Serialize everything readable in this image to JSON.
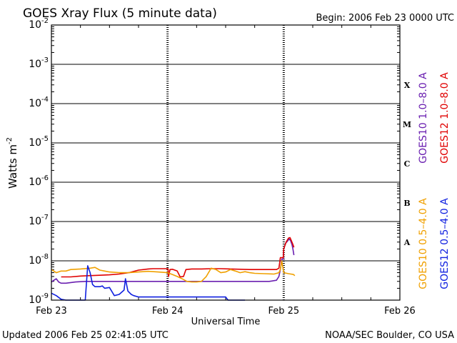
{
  "chart_data": {
    "type": "line",
    "title": "GOES Xray Flux (5 minute data)",
    "begin_label": "Begin:  2006 Feb 23 0000 UTC",
    "xlabel": "Universal Time",
    "ylabel": "Watts m",
    "ylabel_exp": "-2",
    "y_scale": "log",
    "ylim": [
      1e-09,
      0.01
    ],
    "xlim": [
      0,
      72
    ],
    "x_unit": "hours since 2006 Feb 23 0000 UTC",
    "x_ticks": [
      {
        "label": "Feb 23",
        "value": 0
      },
      {
        "label": "Feb 24",
        "value": 24
      },
      {
        "label": "Feb 25",
        "value": 48
      },
      {
        "label": "Feb 26",
        "value": 72
      }
    ],
    "y_ticks": [
      {
        "base": "10",
        "exp": "-9",
        "value": 1e-09
      },
      {
        "base": "10",
        "exp": "-8",
        "value": 1e-08
      },
      {
        "base": "10",
        "exp": "-7",
        "value": 1e-07
      },
      {
        "base": "10",
        "exp": "-6",
        "value": 1e-06
      },
      {
        "base": "10",
        "exp": "-5",
        "value": 1e-05
      },
      {
        "base": "10",
        "exp": "-4",
        "value": 0.0001
      },
      {
        "base": "10",
        "exp": "-3",
        "value": 0.001
      },
      {
        "base": "10",
        "exp": "-2",
        "value": 0.01
      }
    ],
    "flare_classes": [
      {
        "label": "A",
        "value": 3e-08
      },
      {
        "label": "B",
        "value": 3e-07
      },
      {
        "label": "C",
        "value": 3e-06
      },
      {
        "label": "M",
        "value": 3e-05
      },
      {
        "label": "X",
        "value": 0.0003
      }
    ],
    "legend": {
      "placement": "right",
      "high_channel": [
        {
          "label": "GOES10 1.0–8.0 A",
          "color": "#6a1fb0"
        },
        {
          "label": "GOES12 1.0–8.0 A",
          "color": "#e00000"
        }
      ],
      "low_channel": [
        {
          "label": "GOES10 0.5–4.0 A",
          "color": "#f0a000"
        },
        {
          "label": "GOES12 0.5–4.0 A",
          "color": "#1020e0"
        }
      ]
    },
    "series": [
      {
        "name": "GOES10 1.0-8.0 A",
        "color": "#6a1fb0",
        "points": [
          [
            0.0,
            2.9e-09
          ],
          [
            0.5,
            3.2e-09
          ],
          [
            1.0,
            3.5e-09
          ],
          [
            1.5,
            2.9e-09
          ],
          [
            2.0,
            2.7e-09
          ],
          [
            3.0,
            2.7e-09
          ],
          [
            5.0,
            2.9e-09
          ],
          [
            7.0,
            3e-09
          ],
          [
            9.0,
            3e-09
          ],
          [
            11.0,
            3e-09
          ],
          [
            13.0,
            3e-09
          ],
          [
            15.0,
            3e-09
          ],
          [
            17.0,
            3e-09
          ],
          [
            19.0,
            3e-09
          ],
          [
            21.0,
            3e-09
          ],
          [
            23.0,
            3e-09
          ],
          [
            25.0,
            3e-09
          ],
          [
            27.0,
            3e-09
          ],
          [
            29.0,
            3e-09
          ],
          [
            31.0,
            3e-09
          ],
          [
            33.0,
            3e-09
          ],
          [
            35.0,
            3e-09
          ],
          [
            37.0,
            3e-09
          ],
          [
            39.0,
            3e-09
          ],
          [
            41.0,
            3e-09
          ],
          [
            43.0,
            3e-09
          ],
          [
            45.0,
            3e-09
          ],
          [
            46.5,
            3.2e-09
          ],
          [
            47.0,
            4e-09
          ],
          [
            47.3,
            6e-09
          ],
          [
            47.6,
            1.1e-08
          ],
          [
            47.9,
            1.1e-08
          ],
          [
            48.0,
            2e-08
          ],
          [
            48.4,
            2.8e-08
          ],
          [
            48.8,
            3.2e-08
          ],
          [
            49.1,
            3.6e-08
          ],
          [
            49.4,
            3.3e-08
          ],
          [
            49.7,
            2.6e-08
          ],
          [
            49.9,
            2e-08
          ],
          [
            50.1,
            1.4e-08
          ]
        ]
      },
      {
        "name": "GOES12 1.0-8.0 A",
        "color": "#e00000",
        "points": [
          [
            2.0,
            3.9e-09
          ],
          [
            4.0,
            3.9e-09
          ],
          [
            6.0,
            4.1e-09
          ],
          [
            8.0,
            4.2e-09
          ],
          [
            10.0,
            4.3e-09
          ],
          [
            12.0,
            4.4e-09
          ],
          [
            14.0,
            4.6e-09
          ],
          [
            16.0,
            5e-09
          ],
          [
            18.0,
            5.8e-09
          ],
          [
            20.0,
            6.2e-09
          ],
          [
            21.0,
            6.3e-09
          ],
          [
            23.0,
            6.3e-09
          ],
          [
            24.1,
            6.3e-09
          ],
          [
            24.2,
            4e-09
          ],
          [
            24.5,
            6e-09
          ],
          [
            25.0,
            6.1e-09
          ],
          [
            26.0,
            5.5e-09
          ],
          [
            26.6,
            3.9e-09
          ],
          [
            27.3,
            4e-09
          ],
          [
            27.8,
            6e-09
          ],
          [
            29.0,
            6.2e-09
          ],
          [
            31.0,
            6.2e-09
          ],
          [
            33.0,
            6.3e-09
          ],
          [
            35.0,
            6.3e-09
          ],
          [
            37.0,
            6.2e-09
          ],
          [
            39.0,
            6.1e-09
          ],
          [
            41.0,
            6e-09
          ],
          [
            43.0,
            6e-09
          ],
          [
            45.0,
            6e-09
          ],
          [
            46.5,
            6e-09
          ],
          [
            47.0,
            6.5e-09
          ],
          [
            47.3,
            1.2e-08
          ],
          [
            47.9,
            1.2e-08
          ],
          [
            48.0,
            2e-08
          ],
          [
            48.5,
            3e-08
          ],
          [
            49.0,
            3.8e-08
          ],
          [
            49.3,
            3.9e-08
          ],
          [
            49.6,
            3.2e-08
          ],
          [
            49.9,
            2.6e-08
          ],
          [
            50.1,
            2.2e-08
          ]
        ]
      },
      {
        "name": "GOES10 0.5-4.0 A",
        "color": "#f0a000",
        "points": [
          [
            0.0,
            6e-09
          ],
          [
            1.0,
            5e-09
          ],
          [
            2.0,
            5.5e-09
          ],
          [
            3.0,
            5.5e-09
          ],
          [
            4.0,
            6e-09
          ],
          [
            6.0,
            6.2e-09
          ],
          [
            8.0,
            6.5e-09
          ],
          [
            9.0,
            6.8e-09
          ],
          [
            10.0,
            5.8e-09
          ],
          [
            11.0,
            5.5e-09
          ],
          [
            12.0,
            5.2e-09
          ],
          [
            14.0,
            5e-09
          ],
          [
            16.0,
            5e-09
          ],
          [
            18.0,
            5.2e-09
          ],
          [
            20.0,
            5.4e-09
          ],
          [
            22.0,
            5.2e-09
          ],
          [
            24.0,
            5e-09
          ],
          [
            25.0,
            4.5e-09
          ],
          [
            26.0,
            4e-09
          ],
          [
            27.0,
            3.5e-09
          ],
          [
            28.0,
            3e-09
          ],
          [
            29.0,
            2.9e-09
          ],
          [
            30.0,
            2.9e-09
          ],
          [
            31.0,
            3e-09
          ],
          [
            32.0,
            4e-09
          ],
          [
            33.0,
            6.5e-09
          ],
          [
            34.0,
            6e-09
          ],
          [
            35.0,
            5e-09
          ],
          [
            36.0,
            5.2e-09
          ],
          [
            37.0,
            6e-09
          ],
          [
            38.0,
            5.5e-09
          ],
          [
            39.0,
            5e-09
          ],
          [
            40.0,
            5.3e-09
          ],
          [
            41.0,
            5e-09
          ],
          [
            42.0,
            4.8e-09
          ],
          [
            44.0,
            4.7e-09
          ],
          [
            46.0,
            4.6e-09
          ],
          [
            47.0,
            5e-09
          ],
          [
            47.3,
            6e-09
          ],
          [
            47.6,
            1e-08
          ],
          [
            48.0,
            5e-09
          ],
          [
            49.0,
            4.7e-09
          ],
          [
            50.0,
            4.5e-09
          ],
          [
            50.3,
            4.2e-09
          ]
        ]
      },
      {
        "name": "GOES12 0.5-4.0 A",
        "color": "#1020e0",
        "points": [
          [
            0.0,
            1.5e-09
          ],
          [
            1.0,
            1.3e-09
          ],
          [
            2.0,
            1.05e-09
          ],
          [
            3.0,
            1e-09
          ],
          [
            4.0,
            1e-09
          ],
          [
            6.0,
            1e-09
          ],
          [
            7.0,
            1e-09
          ],
          [
            7.5,
            7.5e-09
          ],
          [
            8.0,
            5e-09
          ],
          [
            8.5,
            2.5e-09
          ],
          [
            9.0,
            2.2e-09
          ],
          [
            10.0,
            2.2e-09
          ],
          [
            10.5,
            2.3e-09
          ],
          [
            11.0,
            2e-09
          ],
          [
            12.0,
            2.1e-09
          ],
          [
            13.0,
            1.3e-09
          ],
          [
            14.0,
            1.4e-09
          ],
          [
            15.0,
            1.8e-09
          ],
          [
            15.3,
            3.5e-09
          ],
          [
            15.8,
            1.7e-09
          ],
          [
            16.5,
            1.4e-09
          ],
          [
            17.0,
            1.3e-09
          ],
          [
            18.0,
            1.2e-09
          ],
          [
            20.0,
            1.2e-09
          ],
          [
            22.0,
            1.2e-09
          ],
          [
            25.0,
            1.2e-09
          ],
          [
            27.0,
            1.2e-09
          ],
          [
            30.0,
            1.2e-09
          ],
          [
            33.0,
            1.2e-09
          ],
          [
            35.0,
            1.2e-09
          ],
          [
            36.0,
            1.2e-09
          ],
          [
            36.5,
            1e-09
          ],
          [
            37.0,
            1e-09
          ],
          [
            38.0,
            1e-09
          ],
          [
            39.0,
            1e-09
          ],
          [
            40.0,
            1e-09
          ]
        ]
      }
    ]
  },
  "footer": {
    "updated": "Updated 2006 Feb 25 02:41:05 UTC",
    "credit": "NOAA/SEC Boulder, CO USA"
  }
}
